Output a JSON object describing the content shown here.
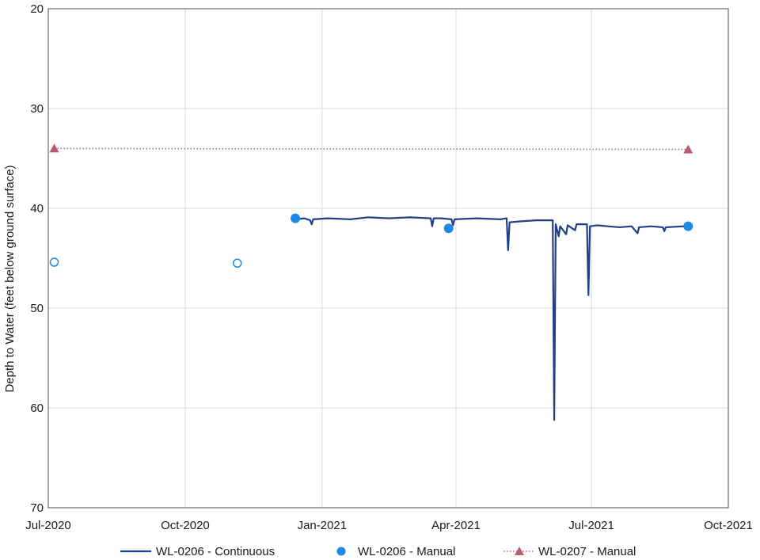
{
  "chart_data": {
    "type": "line",
    "title": "",
    "ylabel": "Depth to Water (feet below ground surface)",
    "xlabel": "",
    "xlim": [
      "2020-07-01",
      "2021-10-01"
    ],
    "ylim": [
      20,
      70
    ],
    "y_inverted": true,
    "y_ticks": [
      20,
      30,
      40,
      50,
      60,
      70
    ],
    "x_ticks": [
      {
        "date": "2020-07-01",
        "label": "Jul-2020"
      },
      {
        "date": "2020-10-01",
        "label": "Oct-2020"
      },
      {
        "date": "2021-01-01",
        "label": "Jan-2021"
      },
      {
        "date": "2021-04-01",
        "label": "Apr-2021"
      },
      {
        "date": "2021-07-01",
        "label": "Jul-2021"
      },
      {
        "date": "2021-10-01",
        "label": "Oct-2021"
      }
    ],
    "grid": true,
    "legend_position": "bottom",
    "series": [
      {
        "name": "WL-0206 - Continuous",
        "kind": "line",
        "color": "#1f3f86",
        "points": [
          [
            "2020-12-15",
            41.1
          ],
          [
            "2020-12-20",
            41.0
          ],
          [
            "2020-12-24",
            41.2
          ],
          [
            "2020-12-25",
            41.6
          ],
          [
            "2020-12-26",
            41.1
          ],
          [
            "2021-01-05",
            41.0
          ],
          [
            "2021-01-20",
            41.1
          ],
          [
            "2021-02-01",
            40.9
          ],
          [
            "2021-02-15",
            41.0
          ],
          [
            "2021-03-01",
            40.9
          ],
          [
            "2021-03-15",
            41.0
          ],
          [
            "2021-03-16",
            41.8
          ],
          [
            "2021-03-17",
            41.0
          ],
          [
            "2021-03-22",
            41.0
          ],
          [
            "2021-03-29",
            41.1
          ],
          [
            "2021-03-30",
            41.7
          ],
          [
            "2021-03-31",
            41.1
          ],
          [
            "2021-04-15",
            41.0
          ],
          [
            "2021-05-01",
            41.1
          ],
          [
            "2021-05-05",
            41.0
          ],
          [
            "2021-05-06",
            44.2
          ],
          [
            "2021-05-07",
            41.4
          ],
          [
            "2021-05-15",
            41.3
          ],
          [
            "2021-05-25",
            41.2
          ],
          [
            "2021-06-05",
            41.2
          ],
          [
            "2021-06-06",
            61.2
          ],
          [
            "2021-06-07",
            41.6
          ],
          [
            "2021-06-09",
            42.8
          ],
          [
            "2021-06-10",
            41.8
          ],
          [
            "2021-06-14",
            42.6
          ],
          [
            "2021-06-15",
            41.7
          ],
          [
            "2021-06-20",
            42.2
          ],
          [
            "2021-06-21",
            41.6
          ],
          [
            "2021-06-28",
            41.6
          ],
          [
            "2021-06-29",
            48.7
          ],
          [
            "2021-06-30",
            41.8
          ],
          [
            "2021-07-05",
            41.7
          ],
          [
            "2021-07-12",
            41.8
          ],
          [
            "2021-07-20",
            41.9
          ],
          [
            "2021-07-28",
            41.8
          ],
          [
            "2021-08-01",
            42.5
          ],
          [
            "2021-08-02",
            41.9
          ],
          [
            "2021-08-10",
            41.8
          ],
          [
            "2021-08-18",
            41.9
          ],
          [
            "2021-08-19",
            42.3
          ],
          [
            "2021-08-20",
            41.9
          ],
          [
            "2021-09-01",
            41.8
          ]
        ]
      },
      {
        "name": "WL-0206 - Manual",
        "kind": "marker",
        "color": "#1e88e5",
        "points": [
          [
            "2020-07-05",
            45.4,
            "hollow"
          ],
          [
            "2020-11-05",
            45.5,
            "hollow"
          ],
          [
            "2020-12-14",
            41.0,
            "filled"
          ],
          [
            "2021-03-27",
            42.0,
            "filled"
          ],
          [
            "2021-09-04",
            41.8,
            "filled"
          ]
        ]
      },
      {
        "name": "WL-0207 - Manual",
        "kind": "dotted-line-marker",
        "color": "#b85c6e",
        "points": [
          [
            "2020-07-05",
            34.0
          ],
          [
            "2021-09-04",
            34.1
          ]
        ]
      }
    ]
  }
}
